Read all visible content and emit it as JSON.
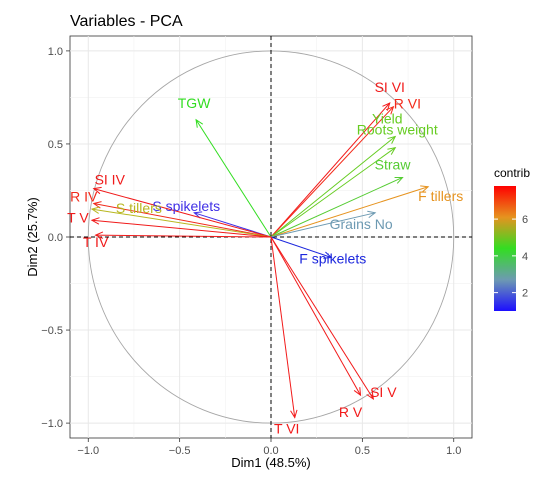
{
  "chart_data": {
    "type": "biplot",
    "title": "Variables - PCA",
    "xlabel": "Dim1 (48.5%)",
    "ylabel": "Dim2 (25.7%)",
    "xlim": [
      -1.1,
      1.1
    ],
    "ylim": [
      -1.08,
      1.08
    ],
    "xticks": [
      -1.0,
      -0.5,
      0.0,
      0.5,
      1.0
    ],
    "xtick_labels": [
      "−1.0",
      "−0.5",
      "0.0",
      "0.5",
      "1.0"
    ],
    "yticks": [
      -1.0,
      -0.5,
      0.0,
      0.5,
      1.0
    ],
    "ytick_labels": [
      "−1.0",
      "−0.5",
      "0.0",
      "0.5",
      "1.0"
    ],
    "grid": true,
    "unit_circle": true,
    "variables": [
      {
        "name": "TGW",
        "x": -0.41,
        "y": 0.63,
        "contrib": 5.2,
        "color": "#33dd22"
      },
      {
        "name": "SI VI",
        "x": 0.65,
        "y": 0.72,
        "contrib": 7.7,
        "color": "#f21a1a"
      },
      {
        "name": "R VI",
        "x": 0.67,
        "y": 0.7,
        "contrib": 7.5,
        "color": "#f32a1a"
      },
      {
        "name": "Yield",
        "x": 0.68,
        "y": 0.54,
        "contrib": 5.6,
        "color": "#66cc22"
      },
      {
        "name": "Roots weight",
        "x": 0.68,
        "y": 0.48,
        "contrib": 5.3,
        "color": "#66cc22"
      },
      {
        "name": "Straw",
        "x": 0.72,
        "y": 0.32,
        "contrib": 5.0,
        "color": "#55cc33"
      },
      {
        "name": "F tillers",
        "x": 0.86,
        "y": 0.27,
        "contrib": 6.0,
        "color": "#e6931f"
      },
      {
        "name": "Grains No",
        "x": 0.57,
        "y": 0.13,
        "contrib": 3.4,
        "color": "#6d9ab2"
      },
      {
        "name": "F spikelets",
        "x": 0.33,
        "y": -0.11,
        "contrib": 1.0,
        "color": "#1c27dd"
      },
      {
        "name": "S spikelets",
        "x": -0.42,
        "y": 0.13,
        "contrib": 1.5,
        "color": "#4030e6"
      },
      {
        "name": "SI IV",
        "x": -0.97,
        "y": 0.26,
        "contrib": 7.6,
        "color": "#f01a1a"
      },
      {
        "name": "R IV",
        "x": -0.97,
        "y": 0.18,
        "contrib": 7.4,
        "color": "#f02a1a"
      },
      {
        "name": "S tillers",
        "x": -0.98,
        "y": 0.15,
        "contrib": 5.9,
        "color": "#b8b71f"
      },
      {
        "name": "T V",
        "x": -0.98,
        "y": 0.09,
        "contrib": 7.3,
        "color": "#f01a1a"
      },
      {
        "name": "T IV",
        "x": -0.96,
        "y": 0.01,
        "contrib": 7.3,
        "color": "#f01a1a"
      },
      {
        "name": "SI V",
        "x": 0.56,
        "y": -0.87,
        "contrib": 7.6,
        "color": "#f21a1a"
      },
      {
        "name": "R V",
        "x": 0.49,
        "y": -0.85,
        "contrib": 7.4,
        "color": "#f21a1a"
      },
      {
        "name": "T VI",
        "x": 0.13,
        "y": -0.97,
        "contrib": 7.3,
        "color": "#f21a1a"
      }
    ],
    "legend": {
      "title": "contrib",
      "placement": "right",
      "ticks": [
        2,
        4,
        6
      ],
      "range": [
        1.0,
        7.8
      ],
      "colors": [
        "#1c0eff",
        "#6d9ab2",
        "#33dd22",
        "#e6931f",
        "#ff0000"
      ]
    }
  }
}
